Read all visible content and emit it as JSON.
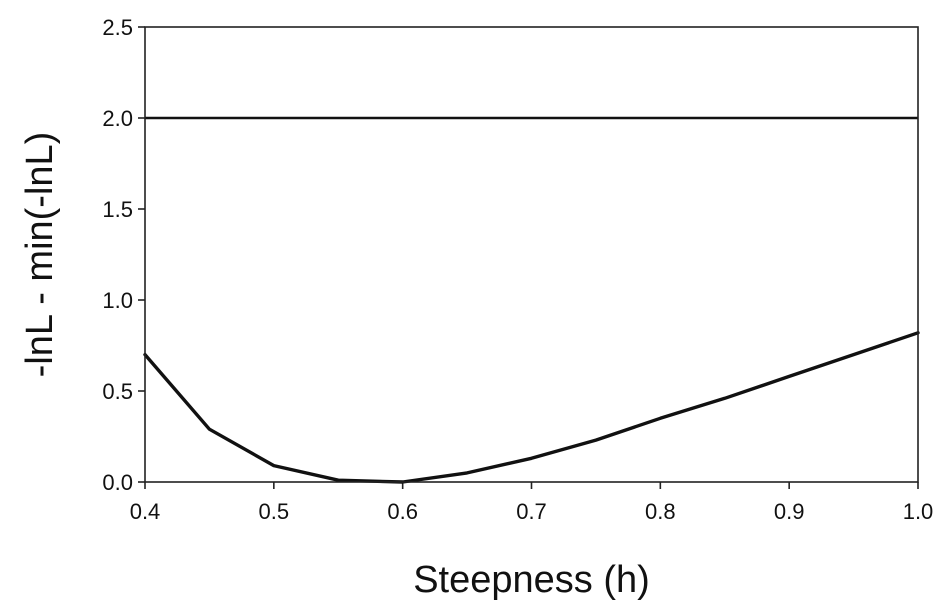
{
  "chart_data": {
    "type": "line",
    "title": "",
    "xlabel": "Steepness (h)",
    "ylabel": "-lnL - min(-lnL)",
    "xlim": [
      0.4,
      1.0
    ],
    "ylim": [
      0.0,
      2.5
    ],
    "x_ticks": [
      "0.4",
      "0.5",
      "0.6",
      "0.7",
      "0.8",
      "0.9",
      "1.0"
    ],
    "y_ticks": [
      "0.0",
      "0.5",
      "1.0",
      "1.5",
      "2.0",
      "2.5"
    ],
    "grid": false,
    "series": [
      {
        "x": [
          0.4,
          0.45,
          0.5,
          0.55,
          0.6,
          0.65,
          0.7,
          0.75,
          0.8,
          0.85,
          0.9,
          0.95,
          1.0
        ],
        "y": [
          0.7,
          0.29,
          0.09,
          0.01,
          0.0,
          0.05,
          0.13,
          0.23,
          0.35,
          0.46,
          0.58,
          0.7,
          0.82
        ],
        "color": "#111111"
      },
      {
        "x": [
          0.4,
          1.0
        ],
        "y": [
          2.0,
          2.0
        ],
        "color": "#111111"
      }
    ]
  }
}
